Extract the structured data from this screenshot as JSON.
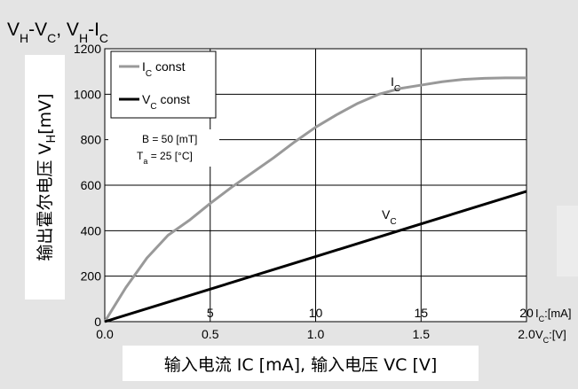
{
  "chart_data": {
    "type": "line",
    "title": {
      "main": "V",
      "parts": [
        {
          "t": "V"
        },
        {
          "t": "H",
          "sub": true
        },
        {
          "t": "-V"
        },
        {
          "t": "C",
          "sub": true
        },
        {
          "t": ", V"
        },
        {
          "t": "H",
          "sub": true
        },
        {
          "t": "-I"
        },
        {
          "t": "C",
          "sub": true
        }
      ]
    },
    "ylabel": {
      "main": "输出霍尔电压 V",
      "sub": "H",
      "unit": "[mV]"
    },
    "xlabel": "输入电流 IC [mA], 输入电压 VC [V]",
    "ylim": [
      0,
      1200
    ],
    "yticks": [
      "0",
      "200",
      "400",
      "600",
      "800",
      "1000",
      "1200"
    ],
    "xlim": [
      0,
      2.0
    ],
    "xticks_bottom": [
      "0.0",
      "0.5",
      "1.0",
      "1.5",
      "2.0"
    ],
    "xticks_top": [
      "5",
      "10",
      "15",
      "20"
    ],
    "x_unit_top": "I",
    "x_unit_top_sub": "C",
    "x_unit_top_rest": ":[mA]",
    "x_unit_bottom": "V",
    "x_unit_bottom_sub": "C",
    "x_unit_bottom_rest": ":[V]",
    "grid": true,
    "legend": [
      {
        "main": "I",
        "sub": "C",
        "rest": " const",
        "color": "#999999"
      },
      {
        "main": "V",
        "sub": "C",
        "rest": " const",
        "color": "#000000"
      }
    ],
    "annotations": {
      "b_field": "B  = 50 [mT]",
      "ta_main": "T",
      "ta_sub": "a",
      "ta_rest": " = 25 [°C]"
    },
    "series": [
      {
        "name_main": "I",
        "name_sub": "C",
        "color": "#999999",
        "x": [
          0,
          0.1,
          0.2,
          0.3,
          0.4,
          0.5,
          0.6,
          0.7,
          0.8,
          0.9,
          1.0,
          1.1,
          1.2,
          1.3,
          1.4,
          1.5,
          1.6,
          1.7,
          1.8,
          1.9,
          2.0
        ],
        "y": [
          0,
          150,
          280,
          380,
          445,
          520,
          590,
          655,
          720,
          790,
          855,
          910,
          960,
          1000,
          1025,
          1040,
          1055,
          1065,
          1070,
          1072,
          1072
        ]
      },
      {
        "name_main": "V",
        "name_sub": "C",
        "color": "#000000",
        "x": [
          0,
          0.5,
          1.0,
          1.5,
          2.0
        ],
        "y": [
          0,
          143,
          286,
          430,
          573
        ]
      }
    ]
  }
}
